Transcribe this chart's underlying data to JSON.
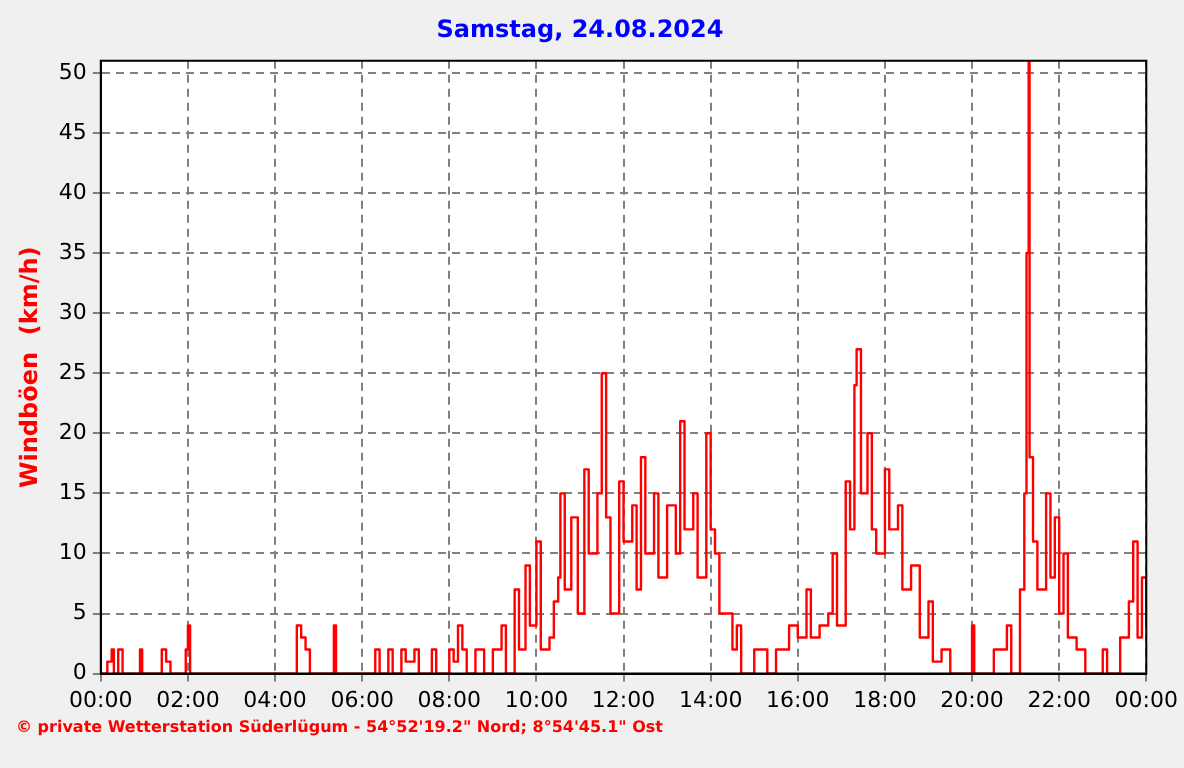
{
  "chart_data": {
    "type": "step",
    "title": "Samstag, 24.08.2024",
    "ylabel": "Windböen  (km/h)",
    "annotations": [
      "© private Wetterstation Süderlügum - 54°52'19.2\" Nord; 8°54'45.1\" Ost"
    ],
    "xlim": [
      0,
      24
    ],
    "ylim": [
      0,
      51
    ],
    "xticks": [
      {
        "value": 0,
        "label": "00:00"
      },
      {
        "value": 2,
        "label": "02:00"
      },
      {
        "value": 4,
        "label": "04:00"
      },
      {
        "value": 6,
        "label": "06:00"
      },
      {
        "value": 8,
        "label": "08:00"
      },
      {
        "value": 10,
        "label": "10:00"
      },
      {
        "value": 12,
        "label": "12:00"
      },
      {
        "value": 14,
        "label": "14:00"
      },
      {
        "value": 16,
        "label": "16:00"
      },
      {
        "value": 18,
        "label": "18:00"
      },
      {
        "value": 20,
        "label": "20:00"
      },
      {
        "value": 22,
        "label": "22:00"
      },
      {
        "value": 24,
        "label": "00:00"
      }
    ],
    "yticks": [
      0,
      5,
      10,
      15,
      20,
      25,
      30,
      35,
      40,
      45,
      50
    ],
    "grid": true,
    "legend": false,
    "marker": "none",
    "line_style": "solid",
    "series": [
      {
        "color": "#ff0000",
        "x": [
          0,
          0.15,
          0.25,
          0.3,
          0.4,
          0.5,
          0.9,
          0.95,
          1.4,
          1.5,
          1.6,
          1.95,
          2,
          2.05,
          4.5,
          4.6,
          4.7,
          4.8,
          5.35,
          5.4,
          6.3,
          6.4,
          6.6,
          6.7,
          6.9,
          7,
          7.2,
          7.3,
          7.6,
          7.7,
          8,
          8.1,
          8.2,
          8.3,
          8.4,
          8.6,
          8.8,
          9,
          9.2,
          9.3,
          9.5,
          9.6,
          9.75,
          9.85,
          10,
          10.1,
          10.3,
          10.4,
          10.5,
          10.55,
          10.65,
          10.8,
          10.95,
          11.1,
          11.2,
          11.4,
          11.5,
          11.6,
          11.7,
          11.9,
          12,
          12.2,
          12.3,
          12.4,
          12.5,
          12.7,
          12.8,
          13,
          13.2,
          13.3,
          13.4,
          13.6,
          13.7,
          13.9,
          14,
          14.1,
          14.2,
          14.4,
          14.5,
          14.6,
          14.7,
          15,
          15.3,
          15.5,
          15.8,
          16,
          16.2,
          16.3,
          16.5,
          16.7,
          16.8,
          16.9,
          17.1,
          17.2,
          17.3,
          17.35,
          17.45,
          17.6,
          17.7,
          17.8,
          18,
          18.1,
          18.3,
          18.4,
          18.6,
          18.8,
          19,
          19.1,
          19.3,
          19.5,
          20,
          20.05,
          20.5,
          20.8,
          20.9,
          21.1,
          21.2,
          21.25,
          21.3,
          21.32,
          21.4,
          21.5,
          21.7,
          21.8,
          21.9,
          22,
          22.1,
          22.2,
          22.4,
          22.6,
          23,
          23.1,
          23.4,
          23.6,
          23.7,
          23.8,
          23.9,
          24
        ],
        "values": [
          0,
          1,
          2,
          0,
          2,
          0,
          2,
          0,
          2,
          1,
          0,
          2,
          4,
          0,
          4,
          3,
          2,
          0,
          4,
          0,
          2,
          0,
          2,
          0,
          2,
          1,
          2,
          0,
          2,
          0,
          2,
          1,
          4,
          2,
          0,
          2,
          0,
          2,
          4,
          0,
          7,
          2,
          9,
          4,
          11,
          2,
          3,
          6,
          8,
          15,
          7,
          13,
          5,
          17,
          10,
          15,
          25,
          13,
          5,
          16,
          11,
          14,
          7,
          18,
          10,
          15,
          8,
          14,
          10,
          21,
          12,
          15,
          8,
          20,
          12,
          10,
          5,
          5,
          2,
          4,
          0,
          2,
          0,
          2,
          4,
          3,
          7,
          3,
          4,
          5,
          10,
          4,
          16,
          12,
          24,
          27,
          15,
          20,
          12,
          10,
          17,
          12,
          14,
          7,
          9,
          3,
          6,
          1,
          2,
          0,
          4,
          0,
          2,
          4,
          0,
          7,
          15,
          35,
          51,
          18,
          11,
          7,
          15,
          8,
          13,
          5,
          10,
          3,
          2,
          0,
          2,
          0,
          3,
          6,
          11,
          3,
          8,
          4
        ]
      }
    ]
  }
}
